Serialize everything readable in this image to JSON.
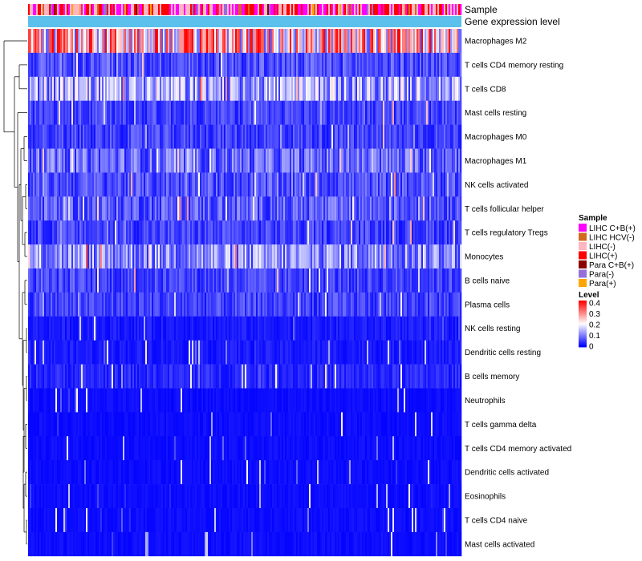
{
  "chart_data": {
    "type": "heatmap",
    "annotation_tracks": [
      "Sample",
      "Gene expression level"
    ],
    "rows": [
      "Macrophages M2",
      "T cells CD4 memory resting",
      "T cells CD8",
      "Mast cells resting",
      "Macrophages M0",
      "Macrophages M1",
      "NK cells activated",
      "T cells follicular helper",
      "T cells regulatory  Tregs",
      "Monocytes",
      "B cells naive",
      "Plasma cells",
      "NK cells resting",
      "Dendritic cells resting",
      "B cells memory",
      "Neutrophils",
      "T cells gamma delta",
      "T cells CD4 memory activated",
      "Dendritic cells activated",
      "Eosinophils",
      "T cells CD4 naive",
      "Mast cells activated"
    ],
    "row_mean_levels": [
      0.24,
      0.06,
      0.13,
      0.05,
      0.05,
      0.08,
      0.06,
      0.07,
      0.05,
      0.11,
      0.05,
      0.05,
      0.02,
      0.02,
      0.03,
      0.01,
      0.01,
      0.01,
      0.01,
      0.01,
      0.01,
      0.01
    ],
    "sample_legend": {
      "title": "Sample",
      "items": [
        {
          "label": "LIHC C+B(+)",
          "color": "#ff00ff"
        },
        {
          "label": "LIHC HCV(-)",
          "color": "#d2691e"
        },
        {
          "label": "LIHC(-)",
          "color": "#ffb6c1"
        },
        {
          "label": "LIHC(+)",
          "color": "#ff0000"
        },
        {
          "label": "Para C+B(+)",
          "color": "#8b0000"
        },
        {
          "label": "Para(-)",
          "color": "#9370db"
        },
        {
          "label": "Para(+)",
          "color": "#ffa500"
        }
      ]
    },
    "level_legend": {
      "title": "Level",
      "ticks": [
        "0.4",
        "0.3",
        "0.2",
        "0.1",
        "0"
      ],
      "range": [
        0,
        0.4
      ],
      "color_low": "#0000ff",
      "color_mid": "#ffffff",
      "color_high": "#ff0000"
    },
    "expression_track_color": "#5bc0eb"
  }
}
